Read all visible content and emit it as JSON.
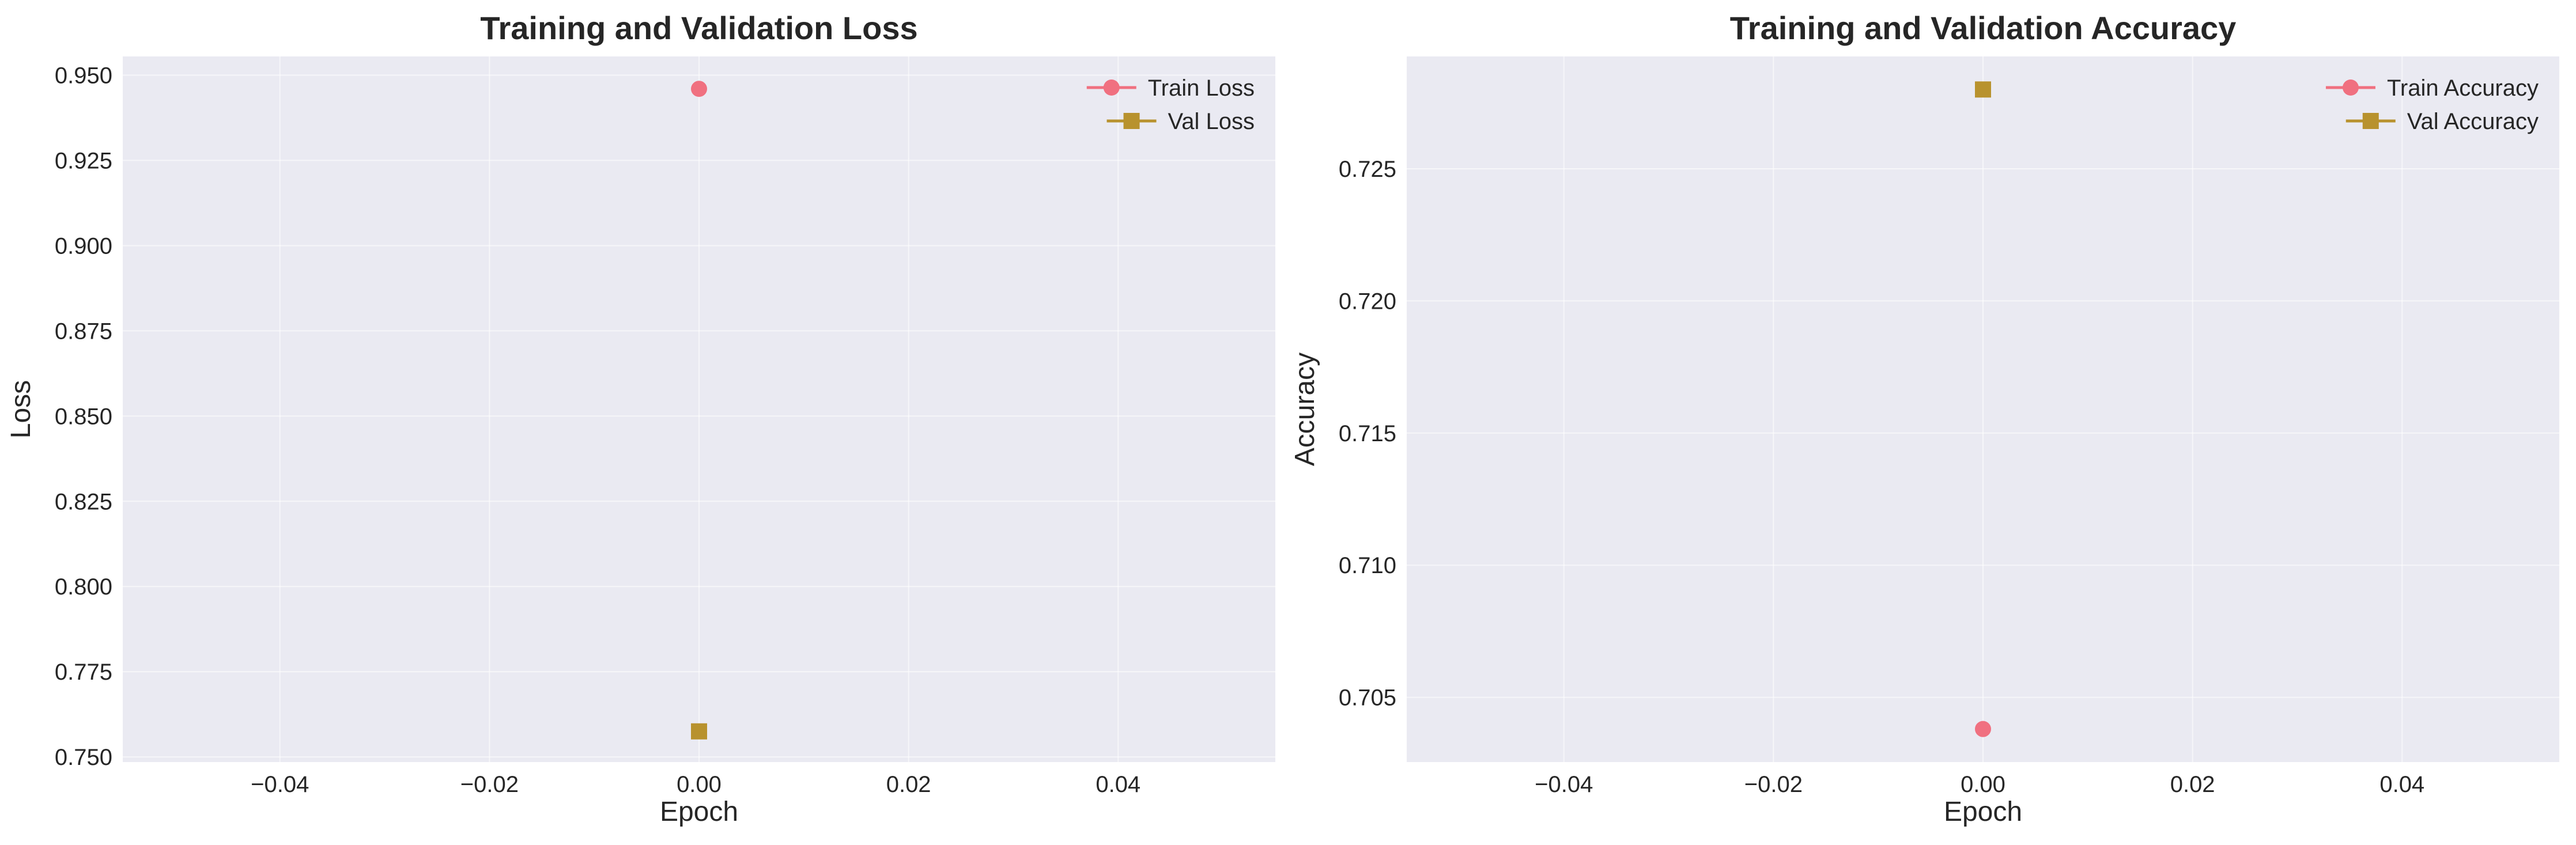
{
  "chart_data": [
    {
      "type": "line",
      "title": "Training and Validation Loss",
      "xlabel": "Epoch",
      "ylabel": "Loss",
      "xlim": [
        -0.055,
        0.055
      ],
      "ylim": [
        0.7485,
        0.9555
      ],
      "x_ticks": [
        -0.04,
        -0.02,
        0.0,
        0.02,
        0.04
      ],
      "x_tick_labels": [
        "−0.04",
        "−0.02",
        "0.00",
        "0.02",
        "0.04"
      ],
      "y_ticks": [
        0.75,
        0.775,
        0.8,
        0.825,
        0.85,
        0.875,
        0.9,
        0.925,
        0.95
      ],
      "y_tick_labels": [
        "0.750",
        "0.775",
        "0.800",
        "0.825",
        "0.850",
        "0.875",
        "0.900",
        "0.925",
        "0.950"
      ],
      "grid": true,
      "legend_position": "top-right",
      "series": [
        {
          "name": "Train Loss",
          "marker": "circle",
          "color": "#f07080",
          "x": [
            0
          ],
          "y": [
            0.946
          ]
        },
        {
          "name": "Val Loss",
          "marker": "square",
          "color": "#b8922e",
          "x": [
            0
          ],
          "y": [
            0.7575
          ]
        }
      ]
    },
    {
      "type": "line",
      "title": "Training and Validation Accuracy",
      "xlabel": "Epoch",
      "ylabel": "Accuracy",
      "xlim": [
        -0.055,
        0.055
      ],
      "ylim": [
        0.70255,
        0.72925
      ],
      "x_ticks": [
        -0.04,
        -0.02,
        0.0,
        0.02,
        0.04
      ],
      "x_tick_labels": [
        "−0.04",
        "−0.02",
        "0.00",
        "0.02",
        "0.04"
      ],
      "y_ticks": [
        0.705,
        0.71,
        0.715,
        0.72,
        0.725
      ],
      "y_tick_labels": [
        "0.705",
        "0.710",
        "0.715",
        "0.720",
        "0.725"
      ],
      "grid": true,
      "legend_position": "top-right",
      "series": [
        {
          "name": "Train Accuracy",
          "marker": "circle",
          "color": "#f07080",
          "x": [
            0
          ],
          "y": [
            0.7038
          ]
        },
        {
          "name": "Val Accuracy",
          "marker": "square",
          "color": "#b8922e",
          "x": [
            0
          ],
          "y": [
            0.728
          ]
        }
      ]
    }
  ],
  "style": {
    "axes_background": "#eaeaf2",
    "grid_color": "#ffffff",
    "text_color": "#262626"
  }
}
